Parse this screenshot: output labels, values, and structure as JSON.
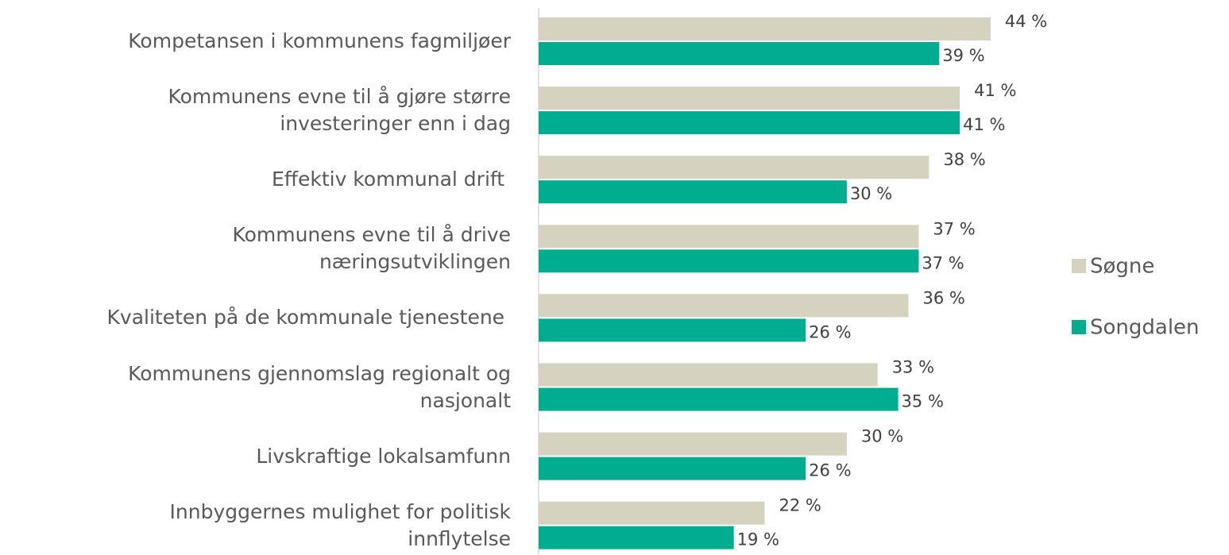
{
  "chart_data": {
    "type": "bar",
    "orientation": "horizontal",
    "categories": [
      "Kompetansen i kommunens fagmiljøer",
      "Kommunens evne til å gjøre større\ninvesteringer enn i dag",
      "Effektiv kommunal drift ",
      "Kommunens evne til å drive\nnæringsutviklingen",
      "Kvaliteten på de kommunale tjenestene ",
      "Kommunens gjennomslag regionalt og\nnasjonalt",
      "Livskraftige lokalsamfunn",
      "Innbyggernes mulighet for politisk\ninnflytelse"
    ],
    "series": [
      {
        "name": "Søgne",
        "color": "#d6d2c0",
        "values": [
          44,
          41,
          38,
          37,
          36,
          33,
          30,
          22
        ],
        "value_labels": [
          "44 %",
          "41 %",
          "38 %",
          "37 %",
          "36 %",
          "33 %",
          "30 %",
          "22 %"
        ]
      },
      {
        "name": "Songdalen",
        "color": "#00ae8f",
        "values": [
          39,
          41,
          30,
          37,
          26,
          35,
          26,
          19
        ],
        "value_labels": [
          "39 %",
          "41 %",
          "30 %",
          "37 %",
          "26 %",
          "35 %",
          "26 %",
          "19 %"
        ]
      }
    ],
    "xlim": [
      0,
      50
    ],
    "legend": "right"
  }
}
